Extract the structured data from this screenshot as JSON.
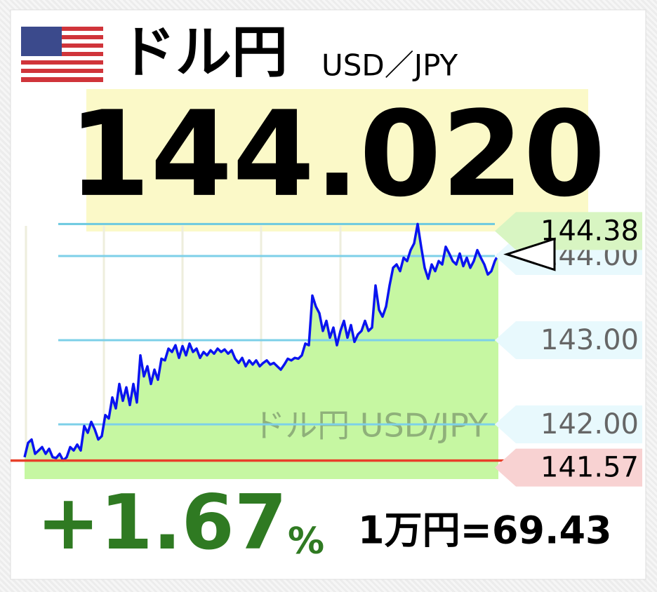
{
  "header": {
    "name": "ドル円",
    "pair": "USD／JPY",
    "price": "144.020"
  },
  "footer": {
    "change": "+1.67",
    "change_unit": "%",
    "conversion": "1万円=69.43"
  },
  "chart_data": {
    "type": "line",
    "watermark": "ドル円 USD/JPY",
    "ylim": [
      141.35,
      144.55
    ],
    "yticks": [
      {
        "value": 142,
        "label": "142.00"
      },
      {
        "value": 143,
        "label": "143.00"
      },
      {
        "value": 144,
        "label": "144.00"
      }
    ],
    "high": {
      "value": 144.38,
      "label": "144.38"
    },
    "low": {
      "value": 141.57,
      "label": "141.57"
    },
    "current": 144.02,
    "series": [
      {
        "color": "#0a14f0",
        "fill": "#c6f7a2",
        "values": [
          141.61,
          141.78,
          141.82,
          141.65,
          141.69,
          141.73,
          141.65,
          141.71,
          141.61,
          141.6,
          141.65,
          141.57,
          141.61,
          141.73,
          141.69,
          141.76,
          141.69,
          141.98,
          141.9,
          142.03,
          141.94,
          141.82,
          141.86,
          142.11,
          142.07,
          142.32,
          142.19,
          142.48,
          142.28,
          142.44,
          142.23,
          142.48,
          142.26,
          142.82,
          142.57,
          142.69,
          142.48,
          142.65,
          142.53,
          142.78,
          142.76,
          142.9,
          142.86,
          142.94,
          142.79,
          142.93,
          142.82,
          142.96,
          142.86,
          142.9,
          142.79,
          142.86,
          142.82,
          142.88,
          142.84,
          142.9,
          142.86,
          142.89,
          142.84,
          142.88,
          142.78,
          142.73,
          142.79,
          142.69,
          142.76,
          142.71,
          142.76,
          142.69,
          142.73,
          142.76,
          142.71,
          142.73,
          142.69,
          142.65,
          142.71,
          142.78,
          142.76,
          142.79,
          142.78,
          142.82,
          142.96,
          142.94,
          143.53,
          143.4,
          143.32,
          143.11,
          143.23,
          143.03,
          143.15,
          142.94,
          143.11,
          143.23,
          143.03,
          143.18,
          142.98,
          143.07,
          143.11,
          143.23,
          143.11,
          143.15,
          143.65,
          143.36,
          143.28,
          143.4,
          143.65,
          143.86,
          143.9,
          143.82,
          143.98,
          143.94,
          144.07,
          144.15,
          144.38,
          144.11,
          143.86,
          143.73,
          143.9,
          143.82,
          143.94,
          143.9,
          144.11,
          144.03,
          143.94,
          143.9,
          144.03,
          143.88,
          143.98,
          143.86,
          143.94,
          144.07,
          143.98,
          143.9,
          143.78,
          143.82,
          143.94,
          144.02
        ]
      }
    ]
  }
}
